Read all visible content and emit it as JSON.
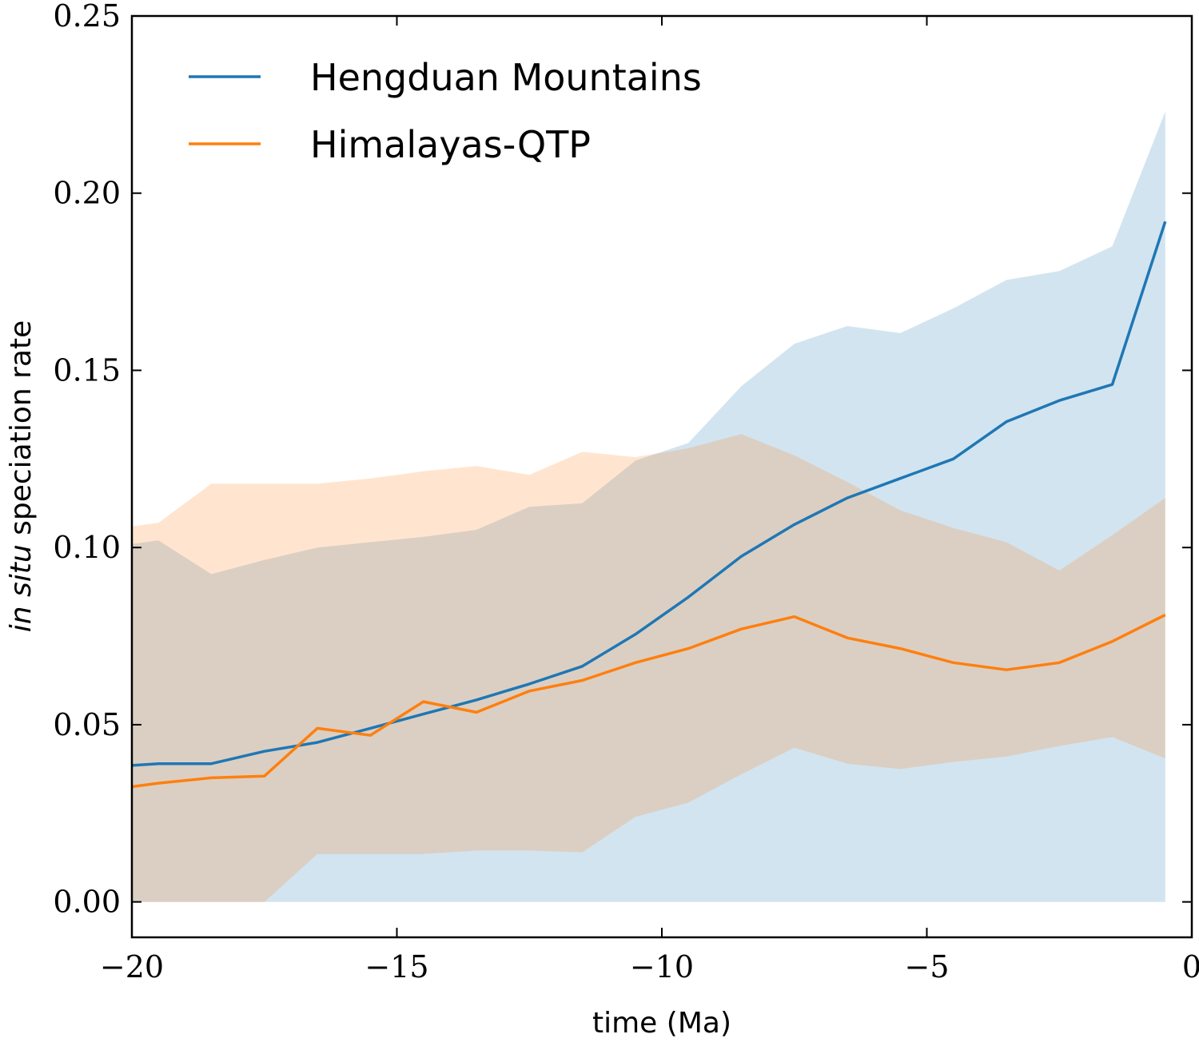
{
  "chart_data": {
    "type": "line",
    "title": "",
    "xlabel": "time (Ma)",
    "ylabel": {
      "italic": "in situ",
      "rest": " speciation rate"
    },
    "xlim": [
      -20,
      0
    ],
    "ylim": [
      -0.01,
      0.25
    ],
    "xticks": [
      -20,
      -15,
      -10,
      -5,
      0
    ],
    "xtick_labels": [
      "−20",
      "−15",
      "−10",
      "−5",
      "0"
    ],
    "yticks": [
      0.0,
      0.05,
      0.1,
      0.15,
      0.2,
      0.25
    ],
    "ytick_labels": [
      "0.00",
      "0.05",
      "0.10",
      "0.15",
      "0.20",
      "0.25"
    ],
    "grid": false,
    "legend_position": "top-left",
    "series": [
      {
        "name": "Hengduan Mountains",
        "color": "#1f77b4",
        "band_color": "#1f77b4",
        "x": [
          -20,
          -19.5,
          -18.5,
          -17.5,
          -16.5,
          -15.5,
          -14.5,
          -13.5,
          -12.5,
          -11.5,
          -10.5,
          -9.5,
          -8.5,
          -7.5,
          -6.5,
          -5.5,
          -4.5,
          -3.5,
          -2.5,
          -1.5,
          -0.5
        ],
        "values": [
          0.0385,
          0.039,
          0.039,
          0.0425,
          0.045,
          0.049,
          0.053,
          0.057,
          0.0615,
          0.0665,
          0.0755,
          0.086,
          0.0975,
          0.1065,
          0.114,
          0.1195,
          0.125,
          0.1355,
          0.1415,
          0.146,
          0.192
        ],
        "upper": [
          0.101,
          0.102,
          0.0925,
          0.0965,
          0.1,
          0.1015,
          0.103,
          0.105,
          0.1115,
          0.1125,
          0.1245,
          0.1295,
          0.1455,
          0.1575,
          0.1625,
          0.1605,
          0.1675,
          0.1755,
          0.178,
          0.185,
          0.223
        ],
        "lower": [
          0.0,
          0.0,
          0.0,
          0.0,
          0.0,
          0.0,
          0.0,
          0.0,
          0.0,
          0.0,
          0.0,
          0.0,
          0.0,
          0.0,
          0.0,
          0.0,
          0.0,
          0.0,
          0.0,
          0.0,
          0.0
        ]
      },
      {
        "name": "Himalayas-QTP",
        "color": "#ff7f0e",
        "band_color": "#ff7f0e",
        "x": [
          -20,
          -19.5,
          -18.5,
          -17.5,
          -16.5,
          -15.5,
          -14.5,
          -13.5,
          -12.5,
          -11.5,
          -10.5,
          -9.5,
          -8.5,
          -7.5,
          -6.5,
          -5.5,
          -4.5,
          -3.5,
          -2.5,
          -1.5,
          -0.5
        ],
        "values": [
          0.0325,
          0.0335,
          0.035,
          0.0355,
          0.049,
          0.047,
          0.0565,
          0.0535,
          0.0595,
          0.0625,
          0.0675,
          0.0715,
          0.077,
          0.0805,
          0.0745,
          0.0715,
          0.0675,
          0.0655,
          0.0675,
          0.0735,
          0.081
        ],
        "upper": [
          0.106,
          0.107,
          0.118,
          0.118,
          0.118,
          0.1195,
          0.1215,
          0.123,
          0.1205,
          0.127,
          0.1255,
          0.128,
          0.132,
          0.126,
          0.1185,
          0.1105,
          0.1055,
          0.1015,
          0.0935,
          0.1035,
          0.114
        ],
        "lower": [
          0.0,
          0.0,
          0.0,
          0.0,
          0.0135,
          0.0135,
          0.0135,
          0.0145,
          0.0145,
          0.014,
          0.024,
          0.028,
          0.036,
          0.0435,
          0.039,
          0.0375,
          0.0395,
          0.041,
          0.044,
          0.0465,
          0.0405
        ]
      }
    ]
  }
}
